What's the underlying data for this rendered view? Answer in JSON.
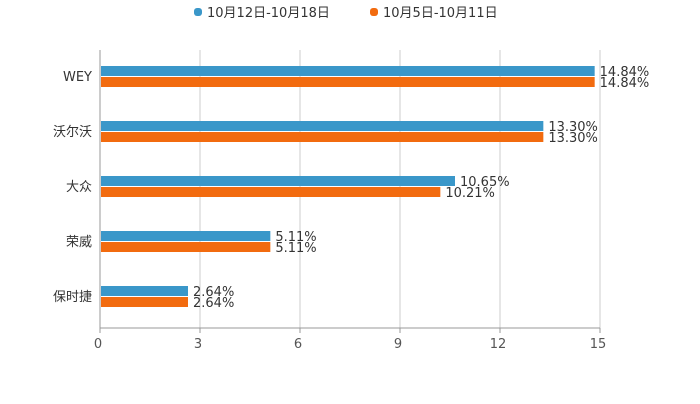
{
  "chart_data": {
    "type": "bar",
    "orientation": "horizontal",
    "title": "",
    "xlabel": "",
    "ylabel": "",
    "xlim": [
      0,
      15
    ],
    "x_ticks": [
      0,
      3,
      6,
      9,
      12,
      15
    ],
    "x_tick_labels": [
      "0",
      "3",
      "6",
      "9",
      "12",
      "15"
    ],
    "grid": true,
    "legend_position": "top-center",
    "categories": [
      "WEY",
      "沃尔沃",
      "大众",
      "荣威",
      "保时捷"
    ],
    "series": [
      {
        "name": "10月12日-10月18日",
        "color": "#3a97c9",
        "values": [
          14.84,
          13.3,
          10.65,
          5.11,
          2.64
        ],
        "labels": [
          "14.84%",
          "13.30%",
          "10.65%",
          "5.11%",
          "2.64%"
        ]
      },
      {
        "name": "10月5日-10月11日",
        "color": "#f26b0f",
        "values": [
          14.84,
          13.3,
          10.21,
          5.11,
          2.64
        ],
        "labels": [
          "14.84%",
          "13.30%",
          "10.21%",
          "5.11%",
          "2.64%"
        ]
      }
    ]
  },
  "colors": {
    "grid": "#cccccc",
    "axis": "#999999",
    "text": "#333333",
    "tick_text": "#555555"
  }
}
